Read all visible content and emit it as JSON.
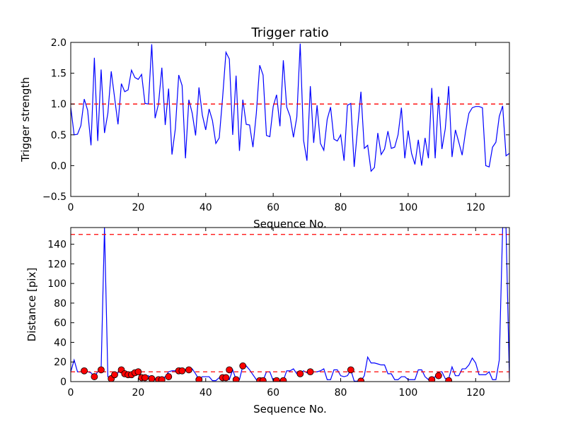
{
  "chart_data": [
    {
      "type": "line",
      "title": "Trigger ratio",
      "xlabel": "Sequence No.",
      "ylabel": "Trigger strength",
      "xlim": [
        0,
        130
      ],
      "ylim": [
        -0.5,
        2.0
      ],
      "xticks": [
        0,
        20,
        40,
        60,
        80,
        100,
        120
      ],
      "yticks": [
        -0.5,
        0.0,
        0.5,
        1.0,
        1.5,
        2.0
      ],
      "xtick_labels": [
        "0",
        "20",
        "40",
        "60",
        "80",
        "100",
        "120"
      ],
      "ytick_labels": [
        "−0.5",
        "0.0",
        "0.5",
        "1.0",
        "1.5",
        "2.0"
      ],
      "series": [
        {
          "name": "trigger strength",
          "color": "#0000ff",
          "values": [
            0.95,
            0.5,
            0.51,
            0.65,
            1.08,
            0.9,
            0.33,
            1.75,
            0.4,
            1.56,
            0.53,
            0.85,
            1.53,
            1.1,
            0.67,
            1.33,
            1.2,
            1.23,
            1.55,
            1.43,
            1.4,
            1.48,
            1.01,
            1.0,
            1.97,
            0.77,
            1.0,
            1.59,
            0.66,
            1.25,
            0.18,
            0.6,
            1.47,
            1.3,
            0.12,
            1.07,
            0.85,
            0.49,
            1.27,
            0.82,
            0.58,
            0.92,
            0.73,
            0.36,
            0.45,
            1.1,
            1.84,
            1.73,
            0.5,
            1.46,
            0.24,
            1.07,
            0.67,
            0.66,
            0.3,
            0.85,
            1.63,
            1.47,
            0.49,
            0.47,
            0.96,
            1.15,
            0.64,
            1.71,
            0.95,
            0.8,
            0.46,
            0.79,
            1.98,
            0.41,
            0.08,
            1.29,
            0.37,
            0.98,
            0.36,
            0.25,
            0.75,
            0.95,
            0.43,
            0.4,
            0.5,
            0.08,
            0.98,
            1.01,
            -0.02,
            0.6,
            1.2,
            0.28,
            0.33,
            -0.09,
            -0.03,
            0.53,
            0.18,
            0.27,
            0.56,
            0.28,
            0.3,
            0.5,
            0.94,
            0.12,
            0.57,
            0.2,
            0.02,
            0.42,
            0.0,
            0.45,
            0.12,
            1.26,
            0.12,
            1.12,
            0.27,
            0.6,
            1.29,
            0.14,
            0.58,
            0.38,
            0.17,
            0.55,
            0.85,
            0.94,
            0.96,
            0.96,
            0.94,
            0.0,
            -0.02,
            0.3,
            0.38,
            0.8,
            0.97,
            0.16,
            0.2
          ]
        }
      ],
      "reference_lines": [
        {
          "y": 1.0,
          "color": "#ff0000",
          "style": "dashed"
        }
      ]
    },
    {
      "type": "line",
      "title": "",
      "xlabel": "Sequence No.",
      "ylabel": "Distance [pix]",
      "xlim": [
        0,
        130
      ],
      "ylim": [
        0,
        157
      ],
      "xticks": [
        0,
        20,
        40,
        60,
        80,
        100,
        120
      ],
      "yticks": [
        0,
        20,
        40,
        60,
        80,
        100,
        120,
        140
      ],
      "xtick_labels": [
        "0",
        "20",
        "40",
        "60",
        "80",
        "100",
        "120"
      ],
      "ytick_labels": [
        "0",
        "20",
        "40",
        "60",
        "80",
        "100",
        "120",
        "140"
      ],
      "series": [
        {
          "name": "distance",
          "color": "#0000ff",
          "values": [
            10,
            22,
            10,
            10,
            11,
            10,
            9,
            5,
            10,
            12,
            157,
            5,
            3,
            7,
            9,
            12,
            8,
            7,
            8,
            9,
            10,
            4,
            4,
            6,
            3,
            2,
            2,
            2,
            5,
            10,
            11,
            11,
            10,
            10,
            12,
            12,
            13,
            8,
            2,
            5,
            5,
            5,
            1,
            1,
            4,
            4,
            4,
            2,
            12,
            2,
            2,
            16,
            16,
            12,
            7,
            2,
            1,
            1,
            10,
            10,
            1,
            1,
            1,
            1,
            11,
            11,
            13,
            8,
            8,
            11,
            9,
            11,
            10,
            10,
            11,
            13,
            2,
            2,
            12,
            12,
            6,
            5,
            6,
            12,
            0.5,
            0.5,
            0.5,
            6,
            25,
            19,
            19,
            18,
            17,
            17,
            8,
            8,
            2,
            2,
            5,
            5,
            2,
            2,
            2,
            12,
            12,
            5,
            2,
            2,
            5,
            10,
            10,
            3,
            3,
            15,
            6,
            6,
            13,
            13,
            17,
            24,
            19,
            7,
            7,
            7,
            10,
            2,
            2,
            22,
            157,
            157,
            3
          ]
        }
      ],
      "markers": {
        "color": "#ff0000",
        "points": [
          [
            4,
            11
          ],
          [
            7,
            5
          ],
          [
            9,
            12
          ],
          [
            12,
            3
          ],
          [
            13,
            7
          ],
          [
            15,
            12
          ],
          [
            16,
            8
          ],
          [
            17,
            7
          ],
          [
            18,
            7
          ],
          [
            19,
            9
          ],
          [
            20,
            10
          ],
          [
            21,
            4
          ],
          [
            22,
            4
          ],
          [
            24,
            3
          ],
          [
            26,
            2
          ],
          [
            27,
            2
          ],
          [
            29,
            5
          ],
          [
            32,
            11
          ],
          [
            33,
            11
          ],
          [
            35,
            12
          ],
          [
            38,
            2
          ],
          [
            45,
            4
          ],
          [
            46,
            4
          ],
          [
            47,
            12
          ],
          [
            49,
            2
          ],
          [
            51,
            16
          ],
          [
            56,
            1
          ],
          [
            57,
            1
          ],
          [
            61,
            1
          ],
          [
            63,
            1
          ],
          [
            68,
            8
          ],
          [
            71,
            10
          ],
          [
            83,
            12
          ],
          [
            86,
            0.5
          ],
          [
            107,
            2
          ],
          [
            109,
            6
          ],
          [
            112,
            1
          ]
        ]
      },
      "reference_lines": [
        {
          "y": 150,
          "color": "#ff0000",
          "style": "dashed"
        },
        {
          "y": 10,
          "color": "#ff0000",
          "style": "dashed"
        }
      ]
    }
  ]
}
